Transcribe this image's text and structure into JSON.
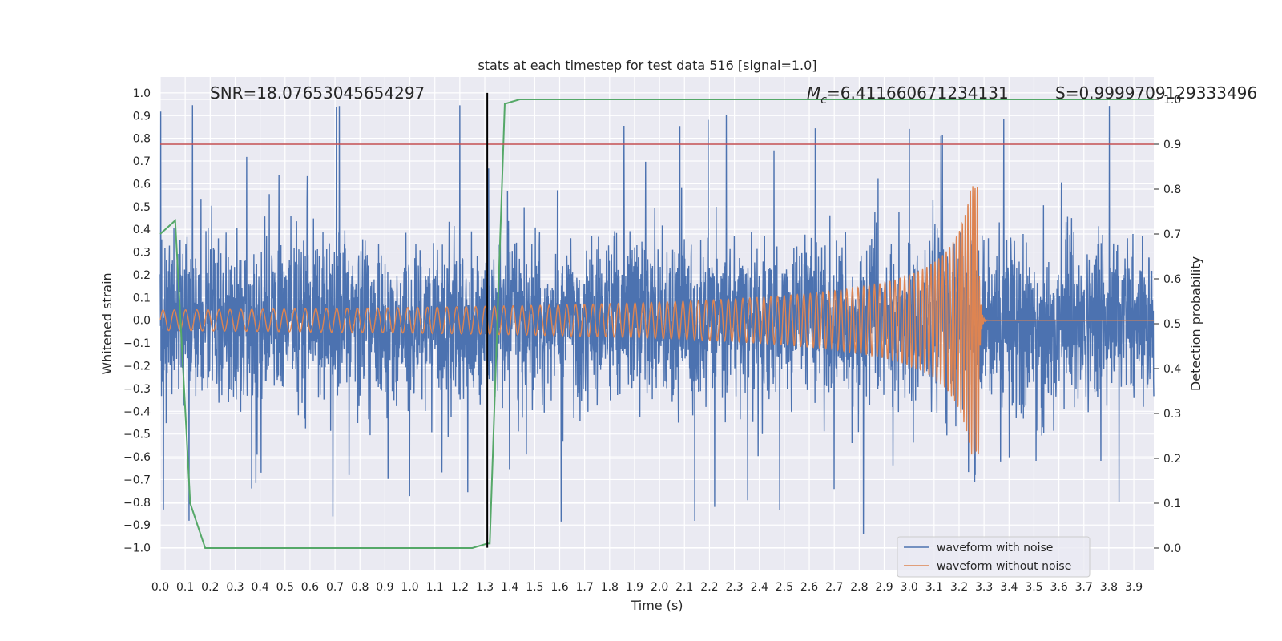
{
  "chart_data": {
    "type": "line",
    "title": "stats at each timestep for test data 516 [signal=1.0]",
    "xlabel": "Time (s)",
    "ylabel": "Whitened strain",
    "y2label": "Detection probability",
    "xlim": [
      0.0,
      3.98
    ],
    "ylim": [
      -1.1,
      1.07
    ],
    "y2lim": [
      -0.05,
      1.05
    ],
    "x_ticks": [
      0.0,
      0.1,
      0.2,
      0.3,
      0.4,
      0.5,
      0.6,
      0.7,
      0.8,
      0.9,
      1.0,
      1.1,
      1.2,
      1.3,
      1.4,
      1.5,
      1.6,
      1.7,
      1.8,
      1.9,
      2.0,
      2.1,
      2.2,
      2.3,
      2.4,
      2.5,
      2.6,
      2.7,
      2.8,
      2.9,
      3.0,
      3.1,
      3.2,
      3.3,
      3.4,
      3.5,
      3.6,
      3.7,
      3.8,
      3.9
    ],
    "x_tick_labels": [
      "0.0",
      "0.1",
      "0.2",
      "0.3",
      "0.4",
      "0.5",
      "0.6",
      "0.7",
      "0.8",
      "0.9",
      "1.0",
      "1.1",
      "1.2",
      "1.3",
      "1.4",
      "1.5",
      "1.6",
      "1.7",
      "1.8",
      "1.9",
      "2.0",
      "2.1",
      "2.2",
      "2.3",
      "2.4",
      "2.5",
      "2.6",
      "2.7",
      "2.8",
      "2.9",
      "3.0",
      "3.1",
      "3.2",
      "3.3",
      "3.4",
      "3.5",
      "3.6",
      "3.7",
      "3.8",
      "3.9"
    ],
    "y_ticks": [
      1.0,
      0.9,
      0.8,
      0.7,
      0.6,
      0.5,
      0.4,
      0.3,
      0.2,
      0.1,
      0.0,
      -0.1,
      -0.2,
      -0.3,
      -0.4,
      -0.5,
      -0.6,
      -0.7,
      -0.8,
      -0.9,
      -1.0
    ],
    "y_tick_labels": [
      "1.0",
      "0.9",
      "0.8",
      "0.7",
      "0.6",
      "0.5",
      "0.4",
      "0.3",
      "0.2",
      "0.1",
      "0.0",
      "−0.1",
      "−0.2",
      "−0.3",
      "−0.4",
      "−0.5",
      "−0.6",
      "−0.7",
      "−0.8",
      "−0.9",
      "−1.0"
    ],
    "y2_ticks": [
      1.0,
      0.9,
      0.8,
      0.7,
      0.6,
      0.5,
      0.4,
      0.3,
      0.2,
      0.1,
      0.0
    ],
    "y2_tick_labels": [
      "1.0",
      "0.9",
      "0.8",
      "0.7",
      "0.6",
      "0.5",
      "0.4",
      "0.3",
      "0.2",
      "0.1",
      "0.0"
    ],
    "grid": true,
    "legend_position": "lower-right",
    "annotations": {
      "snr": "SNR=18.07653045654297",
      "mc_symbol": "M",
      "mc_subscript": "c",
      "mc_value": "=6.411660671234131",
      "s": "S=0.9999709129333496"
    },
    "series": [
      {
        "name": "waveform with noise",
        "color": "#4c72b0",
        "axis": "left",
        "description": "whitened strain with noise, roughly uniform amplitude ~0.4 with spikes up to ~0.96 and down to ~-1.0"
      },
      {
        "name": "waveform without noise",
        "color": "#dd8452",
        "axis": "left",
        "chirp": {
          "t_start": 0.0,
          "t_merge": 3.28,
          "amplitude_start": 0.045,
          "amplitude_peak": 0.59,
          "freq_start_hz": 22,
          "freq_merge_hz": 110,
          "after_merge_value": 0.0
        }
      },
      {
        "name": "detection probability",
        "color": "#55a868",
        "axis": "right",
        "x": [
          0.0,
          0.06,
          0.12,
          0.18,
          0.19,
          1.25,
          1.31,
          1.32,
          1.38,
          1.44,
          3.98
        ],
        "values": [
          0.7,
          0.73,
          0.1,
          0.0,
          0.0,
          0.0,
          0.01,
          0.01,
          0.99,
          1.0,
          1.0
        ]
      }
    ],
    "hlines": [
      {
        "name": "threshold",
        "axis": "right",
        "value": 0.9,
        "color": "#c44e52"
      }
    ],
    "vlines": [
      {
        "name": "marker",
        "x": 1.31,
        "y_from": -1.0,
        "y_to": 1.0,
        "color": "#000000"
      }
    ]
  }
}
